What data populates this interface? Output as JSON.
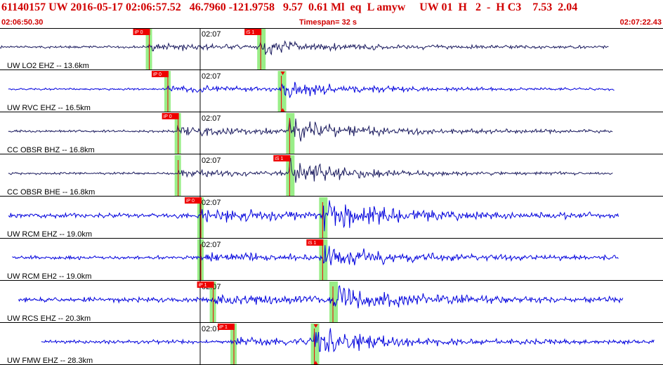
{
  "header": {
    "title": "61140157 UW 2016-05-17 02:06:57.52   46.7960 -121.9758   9.57  0.61 Ml  eq  L amyw     UW 01  H   2  -  H C3    7.53  2.04",
    "start_time": "02:06:50.30",
    "timespan": "Timespan=  32 s",
    "end_time": "02:07:22.43"
  },
  "colors": {
    "header_text": "#d10000",
    "trace_blue": "#0000dd",
    "trace_dark": "#1a1a5e",
    "pick_red": "#ee0000",
    "window_green": "#99ee88",
    "divider": "#000000",
    "minute_line": "#000000"
  },
  "minute_mark": "02:07",
  "channels": [
    {
      "label": "UW LO2 EHZ -- 13.6km",
      "color": "dark",
      "s_marker": false,
      "picks": [
        {
          "text": "iP 0",
          "t": 7.2
        },
        {
          "text": "iS 1",
          "t": 12.6
        }
      ],
      "green": [
        7.2,
        12.6
      ],
      "trace_from": 0.0,
      "trace_to": 29.5,
      "p_arrival": 7.2,
      "s_arrival": 12.6,
      "amp_noise": 2,
      "amp_p": 5,
      "amp_s": 8
    },
    {
      "label": "UW RVC EHZ -- 16.5km",
      "color": "blue",
      "s_marker": true,
      "picks": [
        {
          "text": "iP 0",
          "t": 8.1
        }
      ],
      "green": [
        8.1,
        13.6
      ],
      "trace_from": 0.4,
      "trace_to": 29.8,
      "p_arrival": 8.1,
      "s_arrival": 13.6,
      "amp_noise": 1.5,
      "amp_p": 5,
      "amp_s": 12
    },
    {
      "label": "CC OBSR BHZ -- 16.8km",
      "color": "dark",
      "s_marker": false,
      "picks": [
        {
          "text": "iP 0",
          "t": 8.6
        }
      ],
      "green": [
        8.6,
        14.0
      ],
      "trace_from": 0.4,
      "trace_to": 29.7,
      "p_arrival": 8.6,
      "s_arrival": 14.0,
      "amp_noise": 2,
      "amp_p": 6,
      "amp_s": 16
    },
    {
      "label": "CC OBSR BHE -- 16.8km",
      "color": "dark",
      "s_marker": false,
      "picks": [
        {
          "text": "iS 1",
          "t": 14.0
        }
      ],
      "green": [
        8.6,
        14.0
      ],
      "trace_from": 0.4,
      "trace_to": 29.7,
      "p_arrival": 8.6,
      "s_arrival": 14.0,
      "amp_noise": 2,
      "amp_p": 4,
      "amp_s": 18
    },
    {
      "label": "UW RCM EHZ -- 19.0km",
      "color": "blue",
      "s_marker": false,
      "picks": [
        {
          "text": "iP 0",
          "t": 9.7
        }
      ],
      "green": [
        9.7,
        15.6
      ],
      "trace_from": 0.4,
      "trace_to": 30.0,
      "p_arrival": 9.7,
      "s_arrival": 15.6,
      "amp_noise": 4,
      "amp_p": 8,
      "amp_s": 20
    },
    {
      "label": "UW RCM EH2 -- 19.0km",
      "color": "blue",
      "s_marker": false,
      "picks": [
        {
          "text": "iS 1",
          "t": 15.6
        }
      ],
      "green": [
        9.7,
        15.6
      ],
      "trace_from": 0.6,
      "trace_to": 30.0,
      "p_arrival": 9.7,
      "s_arrival": 15.6,
      "amp_noise": 3,
      "amp_p": 6,
      "amp_s": 18
    },
    {
      "label": "UW RCS EHZ -- 20.3km",
      "color": "blue",
      "s_marker": false,
      "picks": [
        {
          "text": "iP 1",
          "t": 10.3
        }
      ],
      "green": [
        10.3,
        16.1
      ],
      "trace_from": 0.9,
      "trace_to": 30.2,
      "p_arrival": 10.3,
      "s_arrival": 16.1,
      "amp_noise": 4,
      "amp_p": 6,
      "amp_s": 20
    },
    {
      "label": "UW FMW EHZ -- 28.3km",
      "color": "blue",
      "s_marker": true,
      "picks": [
        {
          "text": "iP 1",
          "t": 11.3
        }
      ],
      "green": [
        11.3,
        15.2
      ],
      "trace_from": 2.0,
      "trace_to": 31.7,
      "p_arrival": 11.3,
      "s_arrival": 15.2,
      "amp_noise": 3,
      "amp_p": 5,
      "amp_s": 22
    }
  ]
}
